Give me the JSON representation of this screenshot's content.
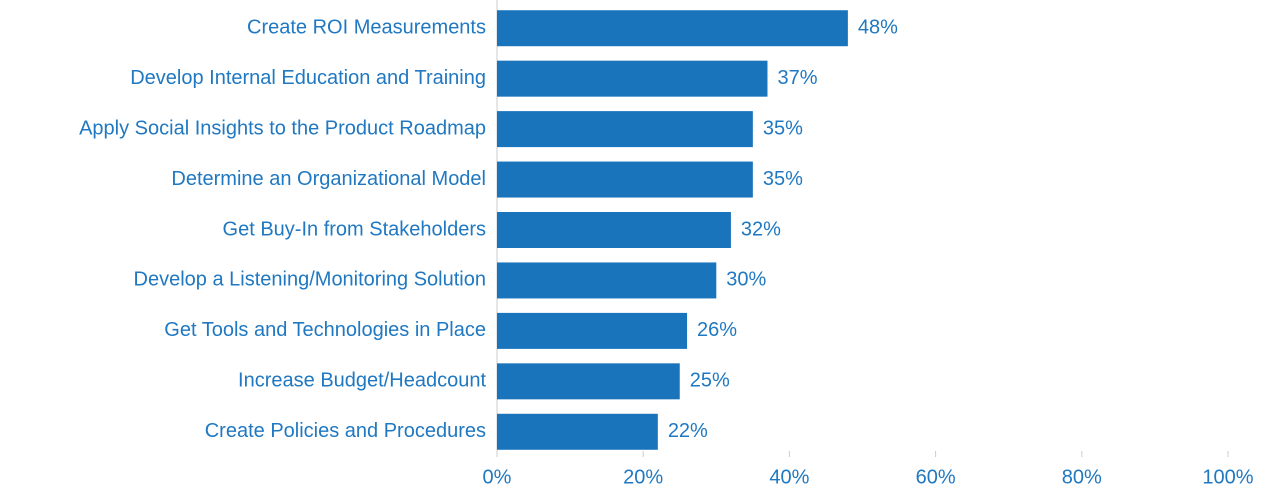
{
  "chart_data": {
    "type": "bar",
    "orientation": "horizontal",
    "categories": [
      "Create ROI Measurements",
      "Develop Internal Education and Training",
      "Apply Social Insights to the Product Roadmap",
      "Determine an Organizational Model",
      "Get Buy-In from Stakeholders",
      "Develop a Listening/Monitoring Solution",
      "Get Tools and Technologies in Place",
      "Increase Budget/Headcount",
      "Create Policies and Procedures"
    ],
    "values": [
      48,
      37,
      35,
      35,
      32,
      30,
      26,
      25,
      22
    ],
    "value_labels": [
      "48%",
      "37%",
      "35%",
      "35%",
      "32%",
      "30%",
      "26%",
      "25%",
      "22%"
    ],
    "color": "#1a74bc",
    "xlim": [
      0,
      100
    ],
    "xticks": [
      {
        "value": 0,
        "label": "0%"
      },
      {
        "value": 20,
        "label": "20%"
      },
      {
        "value": 40,
        "label": "40%"
      },
      {
        "value": 60,
        "label": "60%"
      },
      {
        "value": 80,
        "label": "80%"
      },
      {
        "value": 100,
        "label": "100%"
      }
    ],
    "grid": false
  }
}
